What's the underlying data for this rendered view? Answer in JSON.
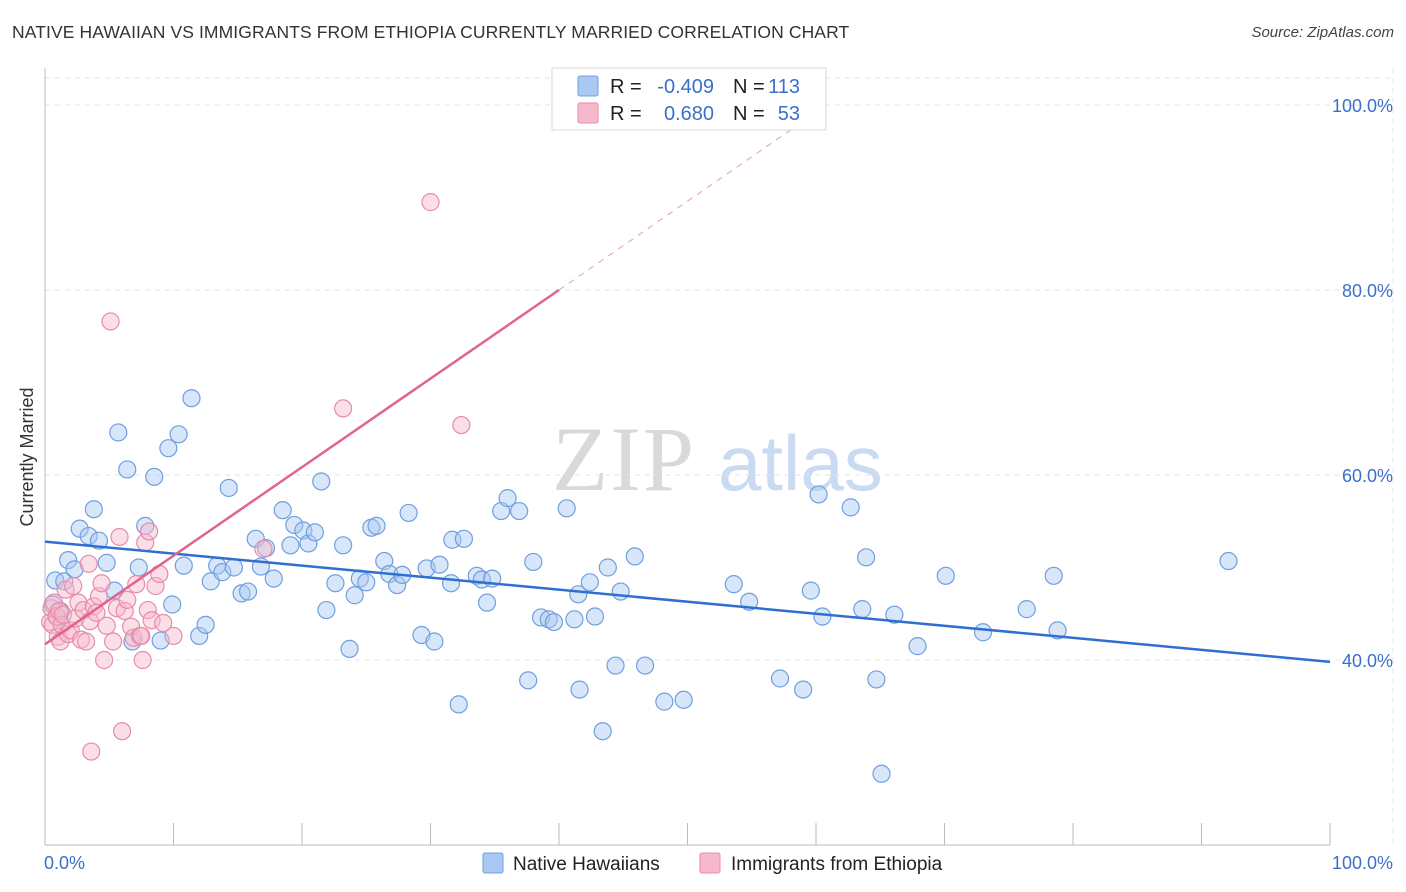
{
  "title": "NATIVE HAWAIIAN VS IMMIGRANTS FROM ETHIOPIA CURRENTLY MARRIED CORRELATION CHART",
  "source": "Source: ZipAtlas.com",
  "watermark": {
    "zip": "ZIP",
    "atlas": "atlas"
  },
  "legend": {
    "r_label": "R =",
    "n_label": "N =",
    "entries": [
      {
        "r": "-0.409",
        "n": "113"
      },
      {
        "r": "0.680",
        "n": "53"
      }
    ]
  },
  "colors": {
    "blue_fill": "#a9c8f2",
    "blue_stroke": "#6f9fe0",
    "blue_line": "#2e6fd1",
    "pink_fill": "#f6b9cc",
    "pink_stroke": "#e88ba8",
    "pink_line": "#e0648c",
    "value_text": "#3b6fc9"
  },
  "chart_data": {
    "type": "scatter",
    "title": "NATIVE HAWAIIAN VS IMMIGRANTS FROM ETHIOPIA CURRENTLY MARRIED CORRELATION CHART",
    "xlabel": "",
    "ylabel": "Currently Married",
    "xlim": [
      0,
      100
    ],
    "ylim": [
      20,
      104
    ],
    "x_tick_labels": [
      "0.0%",
      "100.0%"
    ],
    "y_ticks": [
      {
        "value": 100,
        "label": "100.0%"
      },
      {
        "value": 80,
        "label": "80.0%"
      },
      {
        "value": 60,
        "label": "60.0%"
      },
      {
        "value": 40,
        "label": "40.0%"
      }
    ],
    "series": [
      {
        "name": "Native Hawaiians",
        "r": -0.409,
        "n": 113,
        "trend": {
          "x0": 0,
          "y0": 52.8,
          "x1": 100,
          "y1": 39.8
        },
        "points": [
          [
            0.8,
            48.6
          ],
          [
            1.0,
            44.6
          ],
          [
            1.2,
            45.3
          ],
          [
            1.5,
            48.5
          ],
          [
            1.8,
            50.8
          ],
          [
            2.3,
            49.8
          ],
          [
            2.7,
            54.2
          ],
          [
            3.4,
            53.4
          ],
          [
            3.8,
            56.3
          ],
          [
            4.2,
            52.9
          ],
          [
            4.8,
            50.5
          ],
          [
            5.4,
            47.5
          ],
          [
            5.7,
            64.6
          ],
          [
            6.4,
            60.6
          ],
          [
            6.8,
            42.0
          ],
          [
            7.3,
            50.0
          ],
          [
            7.8,
            54.5
          ],
          [
            8.5,
            59.8
          ],
          [
            9.0,
            42.1
          ],
          [
            9.6,
            62.9
          ],
          [
            9.9,
            46.0
          ],
          [
            10.4,
            64.4
          ],
          [
            10.8,
            50.2
          ],
          [
            11.4,
            68.3
          ],
          [
            12.0,
            42.6
          ],
          [
            12.5,
            43.8
          ],
          [
            12.9,
            48.5
          ],
          [
            13.4,
            50.2
          ],
          [
            13.8,
            49.5
          ],
          [
            14.3,
            58.6
          ],
          [
            14.7,
            50.0
          ],
          [
            15.3,
            47.2
          ],
          [
            15.8,
            47.4
          ],
          [
            16.4,
            53.1
          ],
          [
            16.8,
            50.1
          ],
          [
            17.2,
            52.1
          ],
          [
            17.8,
            48.8
          ],
          [
            18.5,
            56.2
          ],
          [
            19.1,
            52.4
          ],
          [
            19.4,
            54.6
          ],
          [
            20.1,
            54.0
          ],
          [
            20.5,
            52.6
          ],
          [
            21.0,
            53.8
          ],
          [
            21.5,
            59.3
          ],
          [
            21.9,
            45.4
          ],
          [
            22.6,
            48.3
          ],
          [
            23.2,
            52.4
          ],
          [
            23.7,
            41.2
          ],
          [
            24.1,
            47.0
          ],
          [
            24.5,
            48.8
          ],
          [
            25.0,
            48.4
          ],
          [
            25.4,
            54.3
          ],
          [
            25.8,
            54.5
          ],
          [
            26.4,
            50.7
          ],
          [
            26.8,
            49.3
          ],
          [
            27.4,
            48.1
          ],
          [
            27.8,
            49.2
          ],
          [
            28.3,
            55.9
          ],
          [
            29.3,
            42.7
          ],
          [
            29.7,
            49.9
          ],
          [
            30.3,
            42.0
          ],
          [
            30.7,
            50.3
          ],
          [
            31.6,
            48.3
          ],
          [
            31.7,
            53.0
          ],
          [
            32.2,
            35.2
          ],
          [
            32.6,
            53.1
          ],
          [
            33.6,
            49.1
          ],
          [
            34.0,
            48.7
          ],
          [
            34.4,
            46.2
          ],
          [
            34.8,
            48.8
          ],
          [
            35.5,
            56.1
          ],
          [
            36.0,
            57.5
          ],
          [
            36.9,
            56.1
          ],
          [
            37.6,
            37.8
          ],
          [
            38.0,
            50.6
          ],
          [
            38.6,
            44.6
          ],
          [
            39.2,
            44.4
          ],
          [
            39.6,
            44.1
          ],
          [
            40.6,
            56.4
          ],
          [
            41.2,
            44.4
          ],
          [
            41.5,
            47.1
          ],
          [
            41.6,
            36.8
          ],
          [
            42.4,
            48.4
          ],
          [
            42.8,
            44.7
          ],
          [
            43.4,
            32.3
          ],
          [
            43.8,
            50.0
          ],
          [
            44.4,
            39.4
          ],
          [
            44.8,
            47.4
          ],
          [
            45.9,
            51.2
          ],
          [
            46.7,
            39.4
          ],
          [
            48.2,
            35.5
          ],
          [
            49.7,
            35.7
          ],
          [
            53.6,
            48.2
          ],
          [
            54.8,
            46.3
          ],
          [
            57.2,
            38.0
          ],
          [
            59.0,
            36.8
          ],
          [
            59.6,
            47.5
          ],
          [
            60.2,
            57.9
          ],
          [
            60.5,
            44.7
          ],
          [
            62.7,
            56.5
          ],
          [
            63.6,
            45.5
          ],
          [
            63.9,
            51.1
          ],
          [
            64.7,
            37.9
          ],
          [
            65.1,
            27.7
          ],
          [
            66.1,
            44.9
          ],
          [
            67.9,
            41.5
          ],
          [
            70.1,
            49.1
          ],
          [
            73.0,
            43.0
          ],
          [
            76.4,
            45.5
          ],
          [
            78.5,
            49.1
          ],
          [
            78.8,
            43.2
          ],
          [
            92.1,
            50.7
          ],
          [
            0.6,
            46.0
          ]
        ]
      },
      {
        "name": "Immigrants from Ethiopia",
        "r": 0.68,
        "n": 53,
        "trend": {
          "x0": 0,
          "y0": 41.7,
          "x1": 40,
          "y1": 80.0,
          "dash_to_x": 60,
          "dash_to_y": 99.2
        },
        "points": [
          [
            0.4,
            44.1
          ],
          [
            0.5,
            45.6
          ],
          [
            0.6,
            43.8
          ],
          [
            0.7,
            46.2
          ],
          [
            0.9,
            44.7
          ],
          [
            1.0,
            42.5
          ],
          [
            1.1,
            45.3
          ],
          [
            1.2,
            42.0
          ],
          [
            1.3,
            43.8
          ],
          [
            1.4,
            44.9
          ],
          [
            1.6,
            47.6
          ],
          [
            1.8,
            42.8
          ],
          [
            2.0,
            43.2
          ],
          [
            2.2,
            48.0
          ],
          [
            2.4,
            44.5
          ],
          [
            2.6,
            46.2
          ],
          [
            2.8,
            42.2
          ],
          [
            3.0,
            45.4
          ],
          [
            3.2,
            42.0
          ],
          [
            3.4,
            50.4
          ],
          [
            3.5,
            44.2
          ],
          [
            3.6,
            30.1
          ],
          [
            3.8,
            45.8
          ],
          [
            4.0,
            45.1
          ],
          [
            4.2,
            46.9
          ],
          [
            4.4,
            48.3
          ],
          [
            4.6,
            40.0
          ],
          [
            4.8,
            43.7
          ],
          [
            5.1,
            76.6
          ],
          [
            5.3,
            42.0
          ],
          [
            5.6,
            45.6
          ],
          [
            5.8,
            53.3
          ],
          [
            6.0,
            32.3
          ],
          [
            6.2,
            45.3
          ],
          [
            6.4,
            46.5
          ],
          [
            6.7,
            43.6
          ],
          [
            6.9,
            42.4
          ],
          [
            7.1,
            48.2
          ],
          [
            7.4,
            42.6
          ],
          [
            7.5,
            42.6
          ],
          [
            7.8,
            52.7
          ],
          [
            8.0,
            45.4
          ],
          [
            8.1,
            53.9
          ],
          [
            8.3,
            44.3
          ],
          [
            8.6,
            48.0
          ],
          [
            8.9,
            49.3
          ],
          [
            9.2,
            44.0
          ],
          [
            10.0,
            42.6
          ],
          [
            17.0,
            52.0
          ],
          [
            23.2,
            67.2
          ],
          [
            30.0,
            89.5
          ],
          [
            32.4,
            65.4
          ],
          [
            7.6,
            40.0
          ]
        ]
      }
    ]
  }
}
